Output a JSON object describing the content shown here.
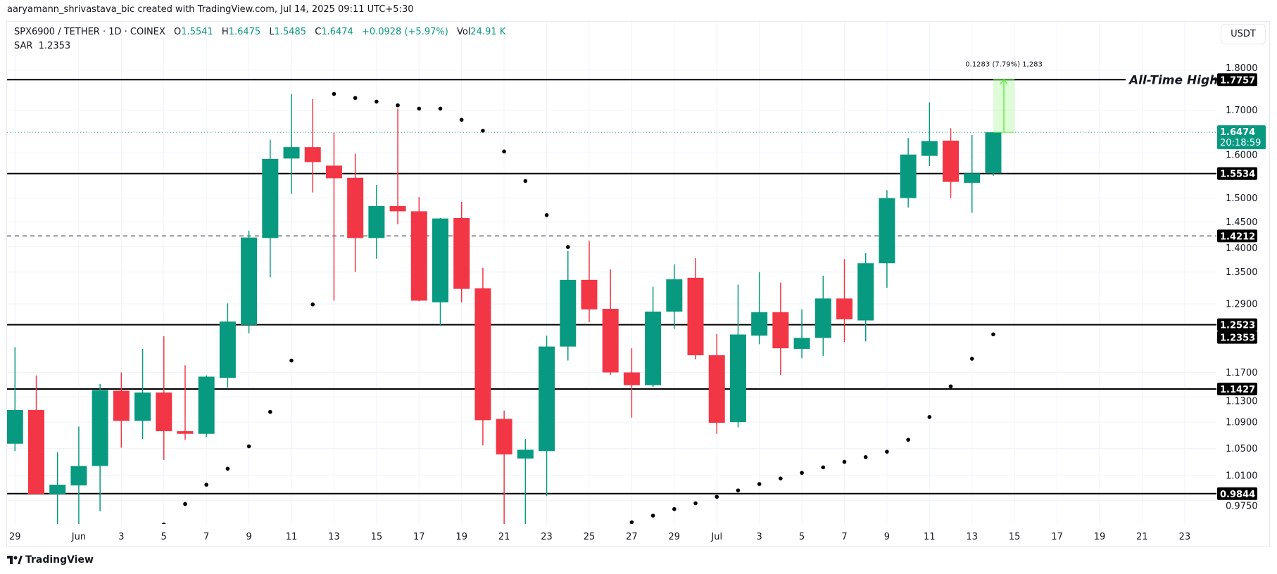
{
  "credit": "aaryamann_shrivastava_bic created with TradingView.com, Jul 14, 2025 09:11 UTC+5:30",
  "legend": {
    "symbol": "SPX6900 / TETHER · 1D · COINEX",
    "o_label": "O",
    "o": "1.5541",
    "h_label": "H",
    "h": "1.6475",
    "l_label": "L",
    "l": "1.5485",
    "c_label": "C",
    "c": "1.6474",
    "change": "+0.0928 (+5.97%)",
    "vol_label": "Vol",
    "vol": "24.91 K",
    "sar_label": "SAR",
    "sar": "1.2353"
  },
  "currency_button": "USDT",
  "footer": {
    "brand": "TradingView"
  },
  "colors": {
    "up": "#089981",
    "down": "#F23645",
    "level": "#000000",
    "sar": "#000000",
    "measure": "#5CF03A"
  },
  "chart_data": {
    "type": "candlestick",
    "scale": "log",
    "grid": true,
    "ylim": [
      0.94,
      1.86
    ],
    "y_ticks": [
      "1.8000",
      "1.7000",
      "1.6000",
      "1.5000",
      "1.4500",
      "1.4000",
      "1.3500",
      "1.2900",
      "1.1700",
      "1.1300",
      "1.0900",
      "1.0500",
      "1.0100",
      "0.9750"
    ],
    "x_ticks": [
      {
        "label": "29",
        "date": "2025-05-29"
      },
      {
        "label": "Jun",
        "date": "2025-06-01"
      },
      {
        "label": "3",
        "date": "2025-06-03"
      },
      {
        "label": "5",
        "date": "2025-06-05"
      },
      {
        "label": "7",
        "date": "2025-06-07"
      },
      {
        "label": "9",
        "date": "2025-06-09"
      },
      {
        "label": "11",
        "date": "2025-06-11"
      },
      {
        "label": "13",
        "date": "2025-06-13"
      },
      {
        "label": "15",
        "date": "2025-06-15"
      },
      {
        "label": "17",
        "date": "2025-06-17"
      },
      {
        "label": "19",
        "date": "2025-06-19"
      },
      {
        "label": "21",
        "date": "2025-06-21"
      },
      {
        "label": "23",
        "date": "2025-06-23"
      },
      {
        "label": "25",
        "date": "2025-06-25"
      },
      {
        "label": "27",
        "date": "2025-06-27"
      },
      {
        "label": "29",
        "date": "2025-06-29"
      },
      {
        "label": "Jul",
        "date": "2025-07-01"
      },
      {
        "label": "3",
        "date": "2025-07-03"
      },
      {
        "label": "5",
        "date": "2025-07-05"
      },
      {
        "label": "7",
        "date": "2025-07-07"
      },
      {
        "label": "9",
        "date": "2025-07-09"
      },
      {
        "label": "11",
        "date": "2025-07-11"
      },
      {
        "label": "13",
        "date": "2025-07-13"
      },
      {
        "label": "15",
        "date": "2025-07-15"
      },
      {
        "label": "17",
        "date": "2025-07-17"
      },
      {
        "label": "19",
        "date": "2025-07-19"
      },
      {
        "label": "21",
        "date": "2025-07-21"
      },
      {
        "label": "23",
        "date": "2025-07-23"
      }
    ],
    "candles": [
      {
        "date": "2025-05-29",
        "o": 1.057,
        "h": 1.213,
        "l": 1.046,
        "c": 1.109
      },
      {
        "date": "2025-05-30",
        "o": 1.109,
        "h": 1.165,
        "l": 0.984,
        "c": 0.984
      },
      {
        "date": "2025-05-31",
        "o": 0.984,
        "h": 1.044,
        "l": 0.941,
        "c": 0.997
      },
      {
        "date": "2025-06-01",
        "o": 0.996,
        "h": 1.083,
        "l": 0.941,
        "c": 1.024
      },
      {
        "date": "2025-06-02",
        "o": 1.024,
        "h": 1.151,
        "l": 0.96,
        "c": 1.141
      },
      {
        "date": "2025-06-03",
        "o": 1.14,
        "h": 1.17,
        "l": 1.051,
        "c": 1.092
      },
      {
        "date": "2025-06-04",
        "o": 1.092,
        "h": 1.21,
        "l": 1.064,
        "c": 1.137
      },
      {
        "date": "2025-06-05",
        "o": 1.137,
        "h": 1.232,
        "l": 1.033,
        "c": 1.076
      },
      {
        "date": "2025-06-06",
        "o": 1.076,
        "h": 1.182,
        "l": 1.063,
        "c": 1.072
      },
      {
        "date": "2025-06-07",
        "o": 1.072,
        "h": 1.165,
        "l": 1.067,
        "c": 1.163
      },
      {
        "date": "2025-06-08",
        "o": 1.161,
        "h": 1.291,
        "l": 1.145,
        "c": 1.258
      },
      {
        "date": "2025-06-09",
        "o": 1.252,
        "h": 1.432,
        "l": 1.237,
        "c": 1.418
      },
      {
        "date": "2025-06-10",
        "o": 1.417,
        "h": 1.63,
        "l": 1.34,
        "c": 1.586
      },
      {
        "date": "2025-06-11",
        "o": 1.587,
        "h": 1.74,
        "l": 1.509,
        "c": 1.613
      },
      {
        "date": "2025-06-12",
        "o": 1.613,
        "h": 1.727,
        "l": 1.512,
        "c": 1.579
      },
      {
        "date": "2025-06-13",
        "o": 1.571,
        "h": 1.647,
        "l": 1.296,
        "c": 1.543
      },
      {
        "date": "2025-06-14",
        "o": 1.544,
        "h": 1.598,
        "l": 1.35,
        "c": 1.417
      },
      {
        "date": "2025-06-15",
        "o": 1.417,
        "h": 1.528,
        "l": 1.376,
        "c": 1.483
      },
      {
        "date": "2025-06-16",
        "o": 1.483,
        "h": 1.704,
        "l": 1.445,
        "c": 1.472
      },
      {
        "date": "2025-06-17",
        "o": 1.472,
        "h": 1.502,
        "l": 1.295,
        "c": 1.296
      },
      {
        "date": "2025-06-18",
        "o": 1.293,
        "h": 1.458,
        "l": 1.25,
        "c": 1.457
      },
      {
        "date": "2025-06-19",
        "o": 1.458,
        "h": 1.492,
        "l": 1.293,
        "c": 1.318
      },
      {
        "date": "2025-06-20",
        "o": 1.319,
        "h": 1.358,
        "l": 1.0545,
        "c": 1.093
      },
      {
        "date": "2025-06-21",
        "o": 1.095,
        "h": 1.108,
        "l": 0.941,
        "c": 1.041
      },
      {
        "date": "2025-06-22",
        "o": 1.035,
        "h": 1.064,
        "l": 0.941,
        "c": 1.048
      },
      {
        "date": "2025-06-23",
        "o": 1.046,
        "h": 1.233,
        "l": 0.981,
        "c": 1.214
      },
      {
        "date": "2025-06-24",
        "o": 1.214,
        "h": 1.391,
        "l": 1.19,
        "c": 1.335
      },
      {
        "date": "2025-06-25",
        "o": 1.335,
        "h": 1.411,
        "l": 1.257,
        "c": 1.28
      },
      {
        "date": "2025-06-26",
        "o": 1.281,
        "h": 1.355,
        "l": 1.166,
        "c": 1.17
      },
      {
        "date": "2025-06-27",
        "o": 1.17,
        "h": 1.211,
        "l": 1.097,
        "c": 1.149
      },
      {
        "date": "2025-06-28",
        "o": 1.149,
        "h": 1.322,
        "l": 1.146,
        "c": 1.276
      },
      {
        "date": "2025-06-29",
        "o": 1.276,
        "h": 1.365,
        "l": 1.245,
        "c": 1.336
      },
      {
        "date": "2025-06-30",
        "o": 1.339,
        "h": 1.377,
        "l": 1.192,
        "c": 1.199
      },
      {
        "date": "2025-07-01",
        "o": 1.199,
        "h": 1.236,
        "l": 1.072,
        "c": 1.089
      },
      {
        "date": "2025-07-02",
        "o": 1.09,
        "h": 1.326,
        "l": 1.082,
        "c": 1.235
      },
      {
        "date": "2025-07-03",
        "o": 1.233,
        "h": 1.35,
        "l": 1.218,
        "c": 1.275
      },
      {
        "date": "2025-07-04",
        "o": 1.275,
        "h": 1.33,
        "l": 1.166,
        "c": 1.211
      },
      {
        "date": "2025-07-05",
        "o": 1.21,
        "h": 1.28,
        "l": 1.194,
        "c": 1.229
      },
      {
        "date": "2025-07-06",
        "o": 1.229,
        "h": 1.343,
        "l": 1.198,
        "c": 1.3
      },
      {
        "date": "2025-07-07",
        "o": 1.3,
        "h": 1.375,
        "l": 1.222,
        "c": 1.262
      },
      {
        "date": "2025-07-08",
        "o": 1.26,
        "h": 1.387,
        "l": 1.223,
        "c": 1.367
      },
      {
        "date": "2025-07-09",
        "o": 1.367,
        "h": 1.517,
        "l": 1.32,
        "c": 1.5
      },
      {
        "date": "2025-07-10",
        "o": 1.5,
        "h": 1.634,
        "l": 1.48,
        "c": 1.596
      },
      {
        "date": "2025-07-11",
        "o": 1.593,
        "h": 1.719,
        "l": 1.57,
        "c": 1.627
      },
      {
        "date": "2025-07-12",
        "o": 1.628,
        "h": 1.657,
        "l": 1.5,
        "c": 1.535
      },
      {
        "date": "2025-07-13",
        "o": 1.533,
        "h": 1.641,
        "l": 1.469,
        "c": 1.554
      },
      {
        "date": "2025-07-14",
        "o": 1.5541,
        "h": 1.6475,
        "l": 1.5485,
        "c": 1.6474
      }
    ],
    "sar": [
      {
        "date": "2025-06-05",
        "v": 0.942
      },
      {
        "date": "2025-06-06",
        "v": 0.97
      },
      {
        "date": "2025-06-07",
        "v": 0.997
      },
      {
        "date": "2025-06-08",
        "v": 1.02
      },
      {
        "date": "2025-06-09",
        "v": 1.053
      },
      {
        "date": "2025-06-10",
        "v": 1.106
      },
      {
        "date": "2025-06-11",
        "v": 1.19
      },
      {
        "date": "2025-06-12",
        "v": 1.289
      },
      {
        "date": "2025-06-13",
        "v": 1.74
      },
      {
        "date": "2025-06-14",
        "v": 1.73
      },
      {
        "date": "2025-06-15",
        "v": 1.721
      },
      {
        "date": "2025-06-16",
        "v": 1.712
      },
      {
        "date": "2025-06-17",
        "v": 1.704
      },
      {
        "date": "2025-06-18",
        "v": 1.704
      },
      {
        "date": "2025-06-19",
        "v": 1.677
      },
      {
        "date": "2025-06-20",
        "v": 1.651
      },
      {
        "date": "2025-06-21",
        "v": 1.603
      },
      {
        "date": "2025-06-22",
        "v": 1.537
      },
      {
        "date": "2025-06-23",
        "v": 1.464
      },
      {
        "date": "2025-06-24",
        "v": 1.399
      },
      {
        "date": "2025-06-27",
        "v": 0.945
      },
      {
        "date": "2025-06-28",
        "v": 0.954
      },
      {
        "date": "2025-06-29",
        "v": 0.963
      },
      {
        "date": "2025-06-30",
        "v": 0.971
      },
      {
        "date": "2025-07-01",
        "v": 0.98
      },
      {
        "date": "2025-07-02",
        "v": 0.989
      },
      {
        "date": "2025-07-03",
        "v": 0.998
      },
      {
        "date": "2025-07-04",
        "v": 1.006
      },
      {
        "date": "2025-07-05",
        "v": 1.014
      },
      {
        "date": "2025-07-06",
        "v": 1.022
      },
      {
        "date": "2025-07-07",
        "v": 1.03
      },
      {
        "date": "2025-07-08",
        "v": 1.037
      },
      {
        "date": "2025-07-09",
        "v": 1.045
      },
      {
        "date": "2025-07-10",
        "v": 1.063
      },
      {
        "date": "2025-07-11",
        "v": 1.098
      },
      {
        "date": "2025-07-12",
        "v": 1.147
      },
      {
        "date": "2025-07-13",
        "v": 1.193
      },
      {
        "date": "2025-07-14",
        "v": 1.2353
      }
    ],
    "levels": [
      {
        "price": "1.7757",
        "style": "solid",
        "annotation": "All-Time High"
      },
      {
        "price": "1.5534",
        "style": "solid"
      },
      {
        "price": "1.4212",
        "style": "dashed"
      },
      {
        "price": "1.2523",
        "style": "solid"
      },
      {
        "price": "1.1427",
        "style": "solid"
      },
      {
        "price": "0.9844",
        "style": "solid"
      }
    ],
    "sar_label": "1.2353",
    "last_price": {
      "price": "1.6474",
      "countdown": "20:18:59"
    },
    "measure": {
      "from": 1.6474,
      "to": 1.7757,
      "start": "2025-07-14",
      "end": "2025-07-15",
      "label": "0.1283 (7.79%) 1,283"
    }
  }
}
